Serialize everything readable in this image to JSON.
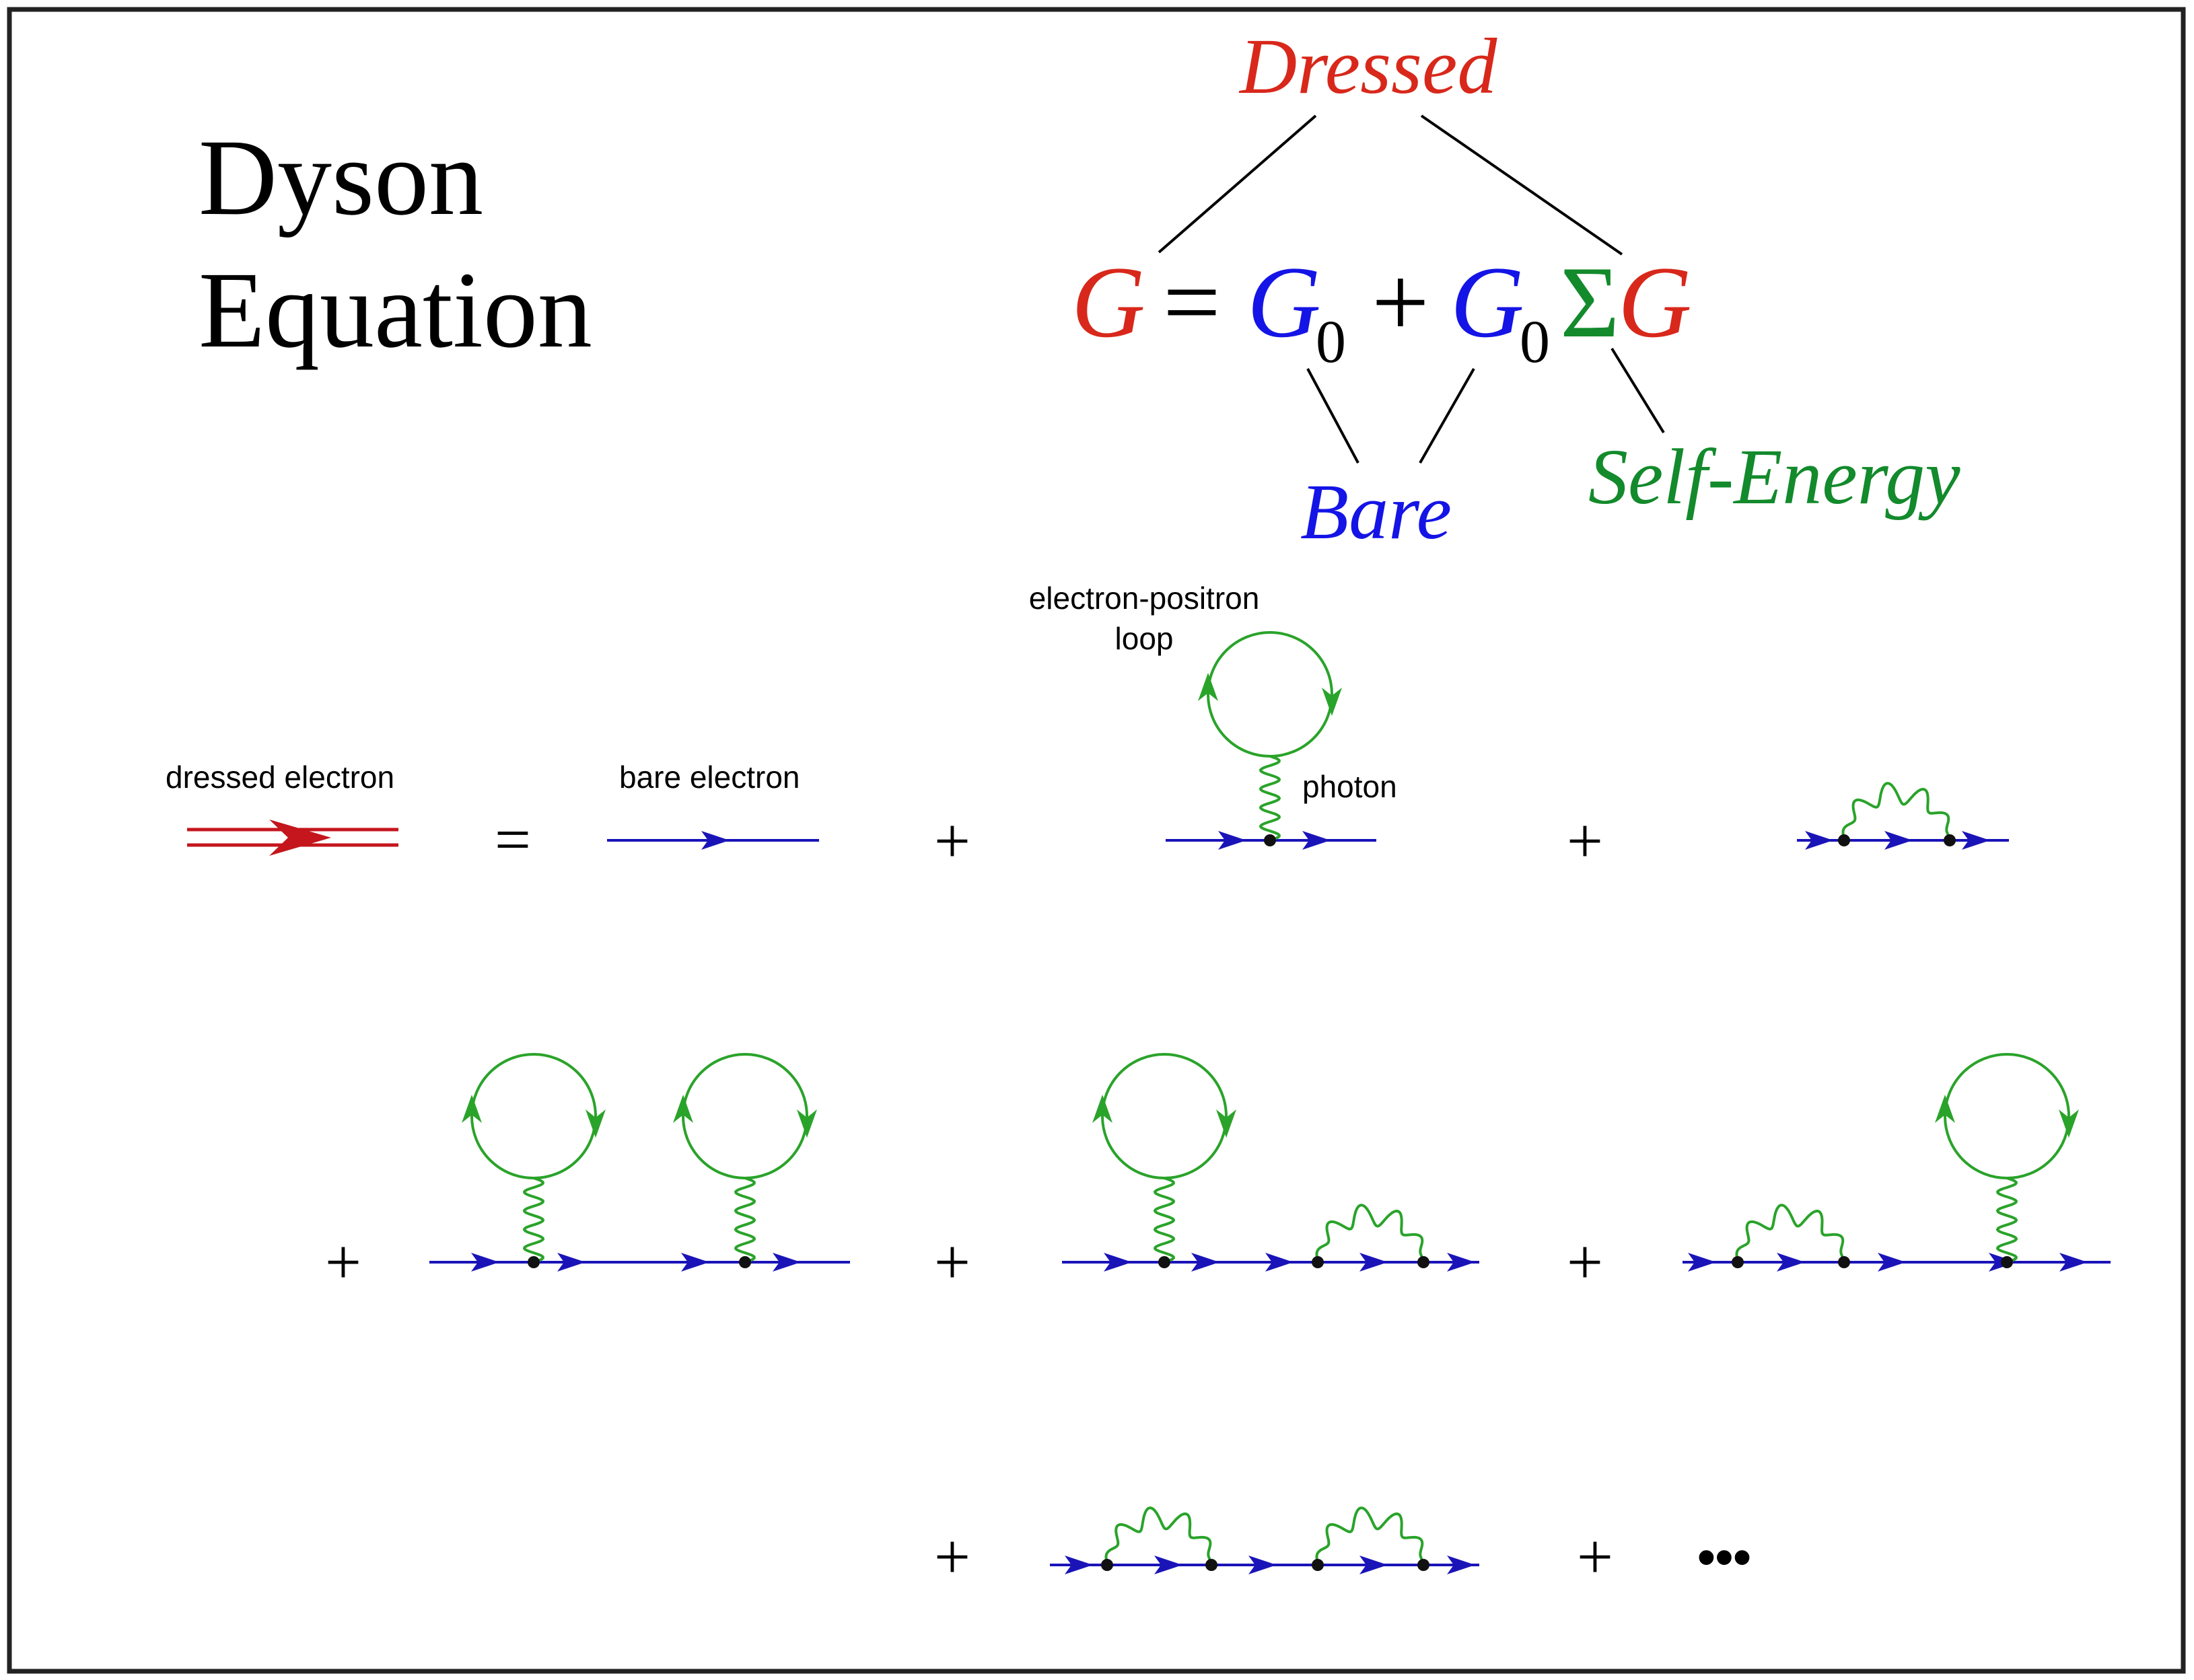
{
  "title": {
    "line1": "Dyson",
    "line2": "Equation"
  },
  "equation": {
    "G": "G",
    "equals": "=",
    "G0a": "G",
    "sub0a": "0",
    "plus": "+",
    "G0b": "G",
    "sub0b": "0",
    "Sigma": "Σ",
    "G2": "G"
  },
  "annotations": {
    "dressed": "Dressed",
    "bare": "Bare",
    "self_energy": "Self-Energy"
  },
  "labels": {
    "dressed_electron": "dressed electron",
    "bare_electron": "bare electron",
    "loop_line1": "electron-positron",
    "loop_line2": "loop",
    "photon": "photon"
  },
  "operators": {
    "equals": "=",
    "plus": "+",
    "ellipsis": "•••"
  },
  "colors": {
    "dressed": "#d8281b",
    "bare": "#1414e6",
    "self_energy": "#138a2c",
    "electron_line": "#1a14b8",
    "photon_loop": "#2aa32a",
    "dressed_propagator": "#c4161c",
    "vertex": "#111111",
    "frame": "#222222"
  },
  "icons": {
    "dressed_propagator": "double-line-arrow",
    "bare_propagator": "line-arrow",
    "tadpole": "loop-on-wavy-photon",
    "self_energy_arc": "wavy-photon-arc",
    "vertex": "filled-dot"
  }
}
